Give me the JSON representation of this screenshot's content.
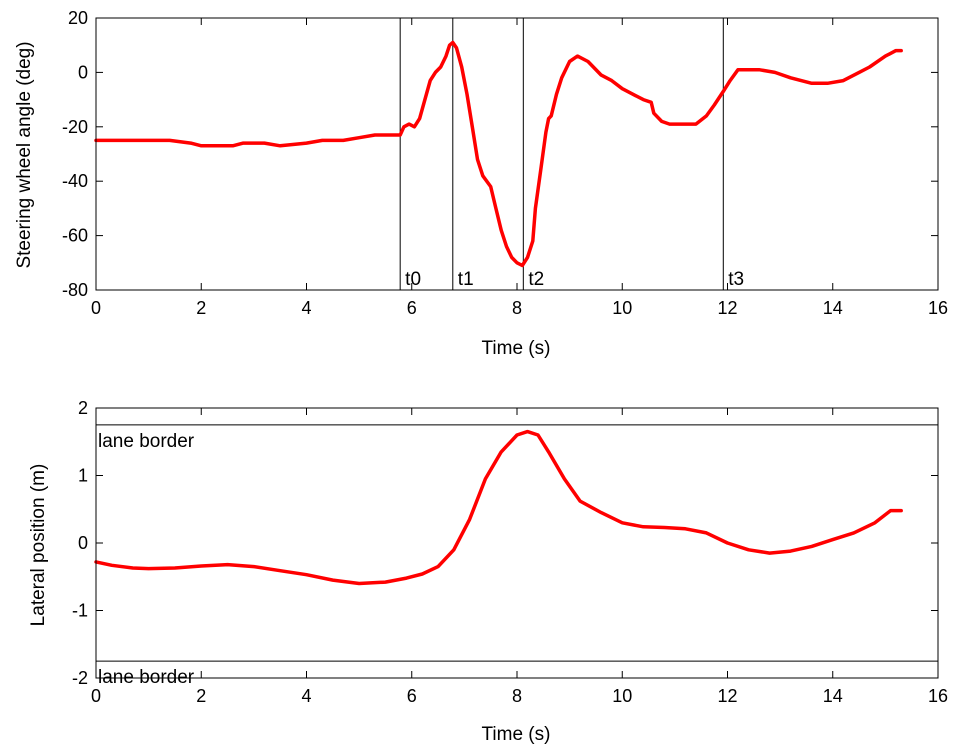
{
  "colors": {
    "series": "#ff0000",
    "axes": "#000000",
    "background": "#ffffff"
  },
  "chart_data": [
    {
      "type": "line",
      "xlabel": "Time (s)",
      "ylabel": "Steering wheel angle (deg)",
      "xlim": [
        0,
        16
      ],
      "ylim": [
        -80,
        20
      ],
      "xticks": [
        0,
        2,
        4,
        6,
        8,
        10,
        12,
        14,
        16
      ],
      "yticks": [
        -80,
        -60,
        -40,
        -20,
        0,
        20
      ],
      "grid": false,
      "vlines": [
        {
          "x": 5.78,
          "label": "t0"
        },
        {
          "x": 6.78,
          "label": "t1"
        },
        {
          "x": 8.12,
          "label": "t2"
        },
        {
          "x": 11.92,
          "label": "t3"
        }
      ],
      "series": [
        {
          "color": "#ff0000",
          "x": [
            0,
            1.4,
            1.8,
            2.0,
            2.6,
            2.8,
            3.2,
            3.5,
            4.0,
            4.3,
            4.7,
            5.0,
            5.3,
            5.78,
            5.85,
            5.95,
            6.05,
            6.15,
            6.25,
            6.35,
            6.45,
            6.55,
            6.65,
            6.72,
            6.78,
            6.85,
            6.95,
            7.05,
            7.15,
            7.25,
            7.35,
            7.5,
            7.6,
            7.7,
            7.8,
            7.9,
            8.0,
            8.1,
            8.2,
            8.3,
            8.35,
            8.45,
            8.55,
            8.6,
            8.65,
            8.75,
            8.85,
            9.0,
            9.15,
            9.35,
            9.6,
            9.8,
            10.0,
            10.2,
            10.4,
            10.55,
            10.6,
            10.75,
            10.9,
            11.1,
            11.4,
            11.6,
            11.75,
            11.92,
            12.05,
            12.2,
            12.4,
            12.6,
            12.9,
            13.2,
            13.6,
            13.9,
            14.2,
            14.5,
            14.7,
            15.0,
            15.2,
            15.3
          ],
          "y": [
            -25,
            -25,
            -26,
            -27,
            -27,
            -26,
            -26,
            -27,
            -26,
            -25,
            -25,
            -24,
            -23,
            -23,
            -20,
            -19,
            -20,
            -17,
            -10,
            -3,
            0,
            2,
            6,
            10,
            11,
            9,
            2,
            -8,
            -20,
            -32,
            -38,
            -42,
            -50,
            -58,
            -64,
            -68,
            -70,
            -71,
            -68,
            -62,
            -50,
            -36,
            -22,
            -17,
            -16,
            -8,
            -2,
            4,
            6,
            4,
            -1,
            -3,
            -6,
            -8,
            -10,
            -11,
            -15,
            -18,
            -19,
            -19,
            -19,
            -16,
            -12,
            -7,
            -3,
            1,
            1,
            1,
            0,
            -2,
            -4,
            -4,
            -3,
            0,
            2,
            6,
            8,
            8
          ]
        }
      ]
    },
    {
      "type": "line",
      "xlabel": "Time (s)",
      "ylabel": "Lateral position (m)",
      "xlim": [
        0,
        16
      ],
      "ylim": [
        -2,
        2
      ],
      "xticks": [
        0,
        2,
        4,
        6,
        8,
        10,
        12,
        14,
        16
      ],
      "yticks": [
        -2,
        -1,
        0,
        1,
        2
      ],
      "grid": false,
      "hlines": [
        {
          "y": 1.75,
          "label": "lane border"
        },
        {
          "y": -1.75,
          "label": "lane border"
        }
      ],
      "series": [
        {
          "color": "#ff0000",
          "x": [
            0,
            0.3,
            0.7,
            1.0,
            1.5,
            2.0,
            2.5,
            3.0,
            3.5,
            4.0,
            4.5,
            5.0,
            5.5,
            5.9,
            6.2,
            6.5,
            6.8,
            7.1,
            7.4,
            7.7,
            8.0,
            8.2,
            8.4,
            8.6,
            8.9,
            9.2,
            9.6,
            10.0,
            10.4,
            10.8,
            11.2,
            11.6,
            12.0,
            12.4,
            12.8,
            13.2,
            13.6,
            14.0,
            14.4,
            14.8,
            15.1,
            15.3
          ],
          "y": [
            -0.28,
            -0.33,
            -0.37,
            -0.38,
            -0.37,
            -0.34,
            -0.32,
            -0.35,
            -0.41,
            -0.47,
            -0.55,
            -0.6,
            -0.58,
            -0.52,
            -0.46,
            -0.35,
            -0.1,
            0.35,
            0.95,
            1.35,
            1.6,
            1.65,
            1.6,
            1.35,
            0.95,
            0.62,
            0.45,
            0.3,
            0.24,
            0.23,
            0.21,
            0.15,
            0.0,
            -0.1,
            -0.15,
            -0.12,
            -0.05,
            0.05,
            0.15,
            0.3,
            0.48,
            0.48
          ]
        }
      ]
    }
  ]
}
